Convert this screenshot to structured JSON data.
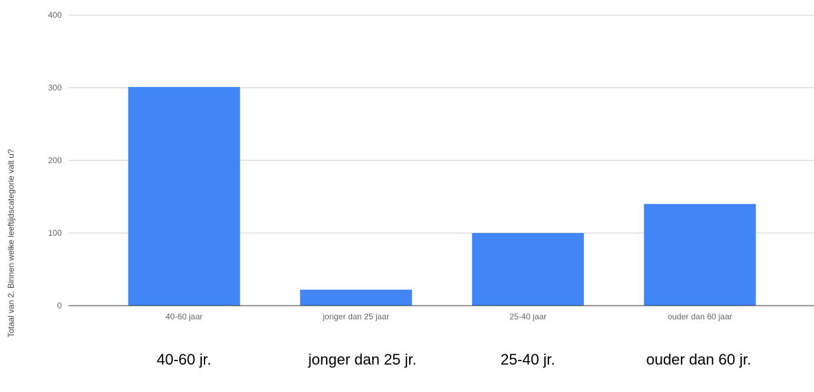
{
  "chart_data": {
    "type": "bar",
    "categories": [
      "40-60 jaar",
      "jonger dan 25 jaar",
      "25-40 jaar",
      "ouder dan 60 jaar"
    ],
    "values": [
      301,
      22,
      100,
      140
    ],
    "title": "",
    "xlabel": "",
    "ylabel": "Totaal van 2. Binnen welke leeftijdscategorie valt u?",
    "ylim": [
      0,
      400
    ],
    "yticks": [
      0,
      100,
      200,
      300,
      400
    ],
    "grid": true,
    "legend": "none",
    "bar_color": "#4285f4"
  },
  "footer_labels": [
    "40-60 jr.",
    "jonger dan 25 jr.",
    "25-40 jr.",
    "ouder dan 60 jr."
  ]
}
